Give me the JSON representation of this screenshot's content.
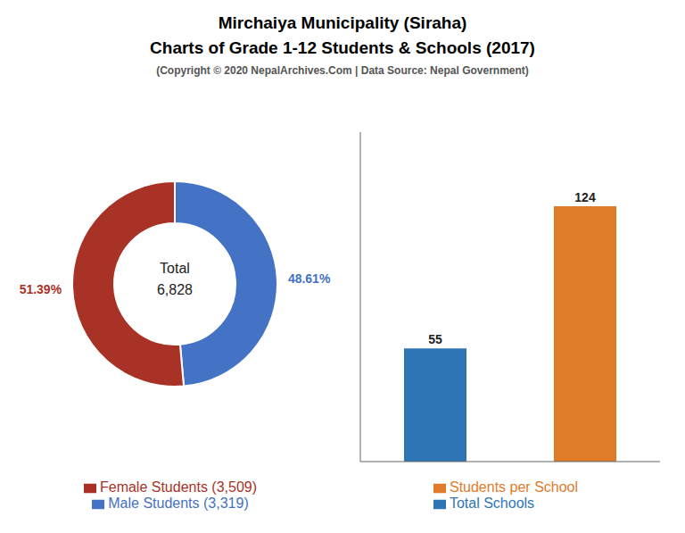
{
  "chart_data": [
    {
      "type": "pie",
      "title": "Mirchaiya Municipality (Siraha)",
      "subtitle": "Charts of Grade 1-12 Students & Schools (2017)",
      "annotations": [
        "(Copyright © 2020 NepalArchives.Com | Data Source: Nepal Government)",
        "Total",
        "6,828"
      ],
      "categories": [
        "Male Students (3,319)",
        "Female Students (3,509)"
      ],
      "values": [
        48.61,
        51.39
      ],
      "value_labels": [
        "48.61%",
        "51.39%"
      ],
      "colors": [
        "#4472c4",
        "#a93226"
      ],
      "data_labels": true,
      "legend": "bottom"
    },
    {
      "type": "bar",
      "categories": [
        "Total Schools",
        "Students per School"
      ],
      "values": [
        55,
        124
      ],
      "colors": [
        "#2e75b6",
        "#e07b2a"
      ],
      "ylim": [
        0,
        160
      ],
      "data_labels": true,
      "tick_labels": false,
      "legend": "bottom"
    }
  ]
}
